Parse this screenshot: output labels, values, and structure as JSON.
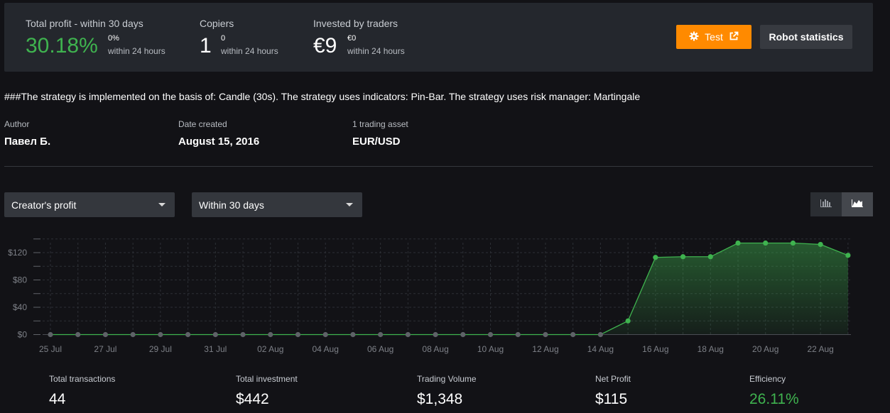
{
  "colors": {
    "accent_orange": "#ff8a00",
    "positive_green": "#3fb34f",
    "panel": "#24272d",
    "background": "#121216"
  },
  "stats": {
    "profit": {
      "label": "Total profit - within 30 days",
      "value": "30.18%",
      "sub_value": "0%",
      "sub_label": "within 24 hours"
    },
    "copiers": {
      "label": "Copiers",
      "value": "1",
      "sub_value": "0",
      "sub_label": "within 24 hours"
    },
    "invested": {
      "label": "Invested by traders",
      "value": "€9",
      "sub_value": "€0",
      "sub_label": "within 24 hours"
    }
  },
  "buttons": {
    "test_label": "Test",
    "test_icons": [
      "gear-icon",
      "external-link-icon"
    ],
    "robot_label": "Robot statistics"
  },
  "description": "###The strategy is implemented on the basis of: Candle (30s). The strategy uses indicators: Pin-Bar. The strategy uses risk manager: Martingale",
  "meta": {
    "author_label": "Author",
    "author_value": "Павел Б.",
    "date_label": "Date created",
    "date_value": "August 15, 2016",
    "asset_label": "1 trading asset",
    "asset_value": "EUR/USD"
  },
  "filters": {
    "metric_selected": "Creator's profit",
    "period_selected": "Within 30 days"
  },
  "view_toggle": {
    "options": [
      "bar-chart-icon",
      "area-chart-icon"
    ],
    "active": "area-chart-icon"
  },
  "chart_data": {
    "type": "area",
    "x": [
      "25 Jul",
      "26 Jul",
      "27 Jul",
      "28 Jul",
      "29 Jul",
      "30 Jul",
      "31 Jul",
      "01 Aug",
      "02 Aug",
      "03 Aug",
      "04 Aug",
      "05 Aug",
      "06 Aug",
      "07 Aug",
      "08 Aug",
      "09 Aug",
      "10 Aug",
      "11 Aug",
      "12 Aug",
      "13 Aug",
      "14 Aug",
      "15 Aug",
      "16 Aug",
      "17 Aug",
      "18 Aug",
      "19 Aug",
      "20 Aug",
      "21 Aug",
      "22 Aug",
      "23 Aug"
    ],
    "values": [
      0,
      0,
      0,
      0,
      0,
      0,
      0,
      0,
      0,
      0,
      0,
      0,
      0,
      0,
      0,
      0,
      0,
      0,
      0,
      0,
      0,
      20,
      113,
      114,
      114,
      134,
      134,
      134,
      132,
      116
    ],
    "x_tick_labels": [
      "25 Jul",
      "27 Jul",
      "29 Jul",
      "31 Jul",
      "02 Aug",
      "04 Aug",
      "06 Aug",
      "08 Aug",
      "10 Aug",
      "12 Aug",
      "14 Aug",
      "16 Aug",
      "18 Aug",
      "20 Aug",
      "22 Aug"
    ],
    "y_tick_labels": [
      "$120",
      "$80",
      "$40",
      "$0"
    ],
    "y_ticks": [
      120,
      80,
      40,
      0
    ],
    "ylim": [
      0,
      140
    ],
    "grid": true,
    "series_color": "#3fb34f",
    "zero_point_color": "#5f6268"
  },
  "kpis": [
    {
      "label": "Total transactions",
      "value": "44"
    },
    {
      "label": "Total investment",
      "value": "$442"
    },
    {
      "label": "Trading Volume",
      "value": "$1,348"
    },
    {
      "label": "Net Profit",
      "value": "$115"
    },
    {
      "label": "Efficiency",
      "value": "26.11%"
    }
  ]
}
